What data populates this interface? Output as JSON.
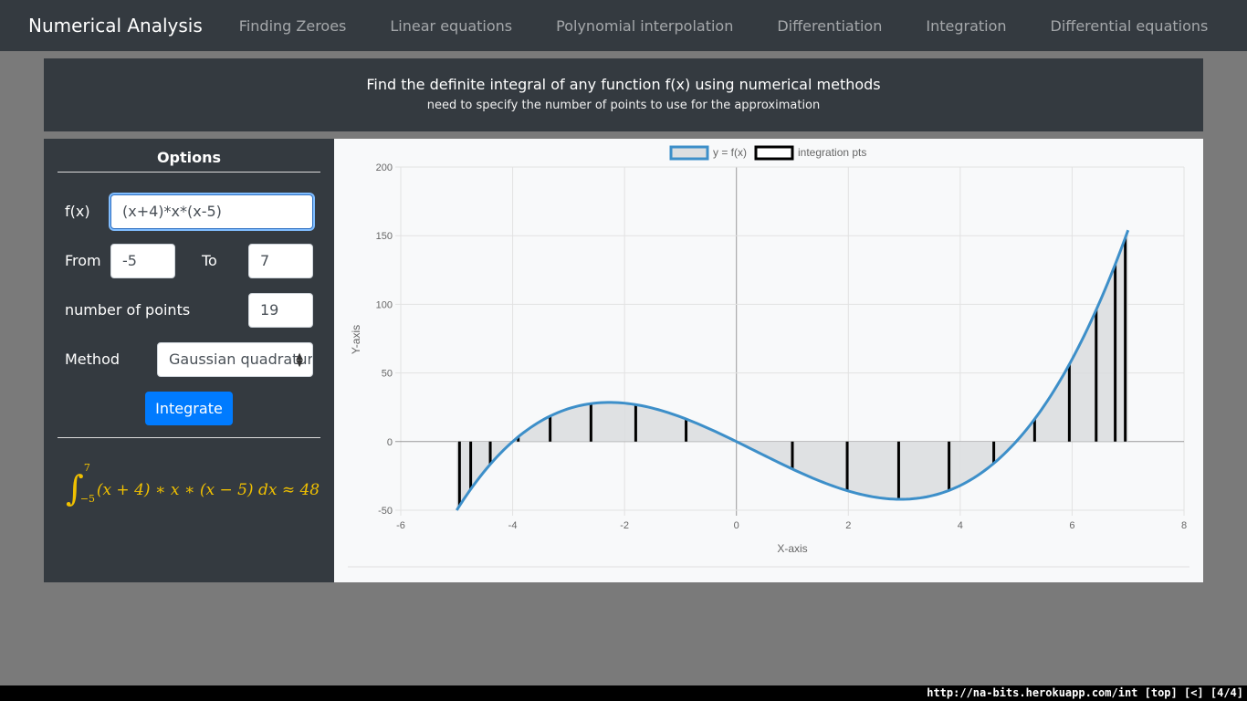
{
  "navbar": {
    "brand": "Numerical Analysis",
    "items": [
      "Finding Zeroes",
      "Linear equations",
      "Polynomial interpolation",
      "Differentiation",
      "Integration",
      "Differential equations"
    ]
  },
  "header": {
    "title": "Find the definite integral of any function f(x) using numerical methods",
    "subtitle": "need to specify the number of points to use for the approximation"
  },
  "options": {
    "title": "Options",
    "fx_label": "f(x)",
    "fx_value": "(x+4)*x*(x-5)",
    "from_label": "From",
    "from_value": "-5",
    "to_label": "To",
    "to_value": "7",
    "points_label": "number of points",
    "points_value": "19",
    "method_label": "Method",
    "method_value": "Gaussian quadrature",
    "integrate_label": "Integrate",
    "result": {
      "lower": "−5",
      "upper": "7",
      "integrand": "(x + 4) ∗ x ∗ (x − 5) dx ≈ 48"
    }
  },
  "chart_data": {
    "type": "line",
    "legend": [
      "y = f(x)",
      "integration pts"
    ],
    "legend_position": "top-center",
    "function": "(x+4)*x*(x-5)",
    "x_range": [
      -5,
      7
    ],
    "xlabel": "X-axis",
    "ylabel": "Y-axis",
    "xlim": [
      -6,
      8
    ],
    "ylim": [
      -50,
      200
    ],
    "x_ticks": [
      -6,
      -4,
      -2,
      0,
      2,
      4,
      6,
      8
    ],
    "y_ticks": [
      -50,
      0,
      50,
      100,
      150,
      200
    ],
    "grid": true,
    "integration_points_x": [
      -4.95,
      -4.75,
      -4.4,
      -3.9,
      -3.33,
      -2.6,
      -1.8,
      -0.9,
      0.0,
      1.0,
      1.98,
      2.9,
      3.8,
      4.6,
      5.33,
      5.95,
      6.43,
      6.77,
      6.95
    ],
    "colors": {
      "line": "#3d8fc9",
      "fill": "#dcdee0",
      "points": "#000000"
    }
  },
  "statusbar": "http://na-bits.herokuapp.com/int  [top]  [<]  [4/4]"
}
